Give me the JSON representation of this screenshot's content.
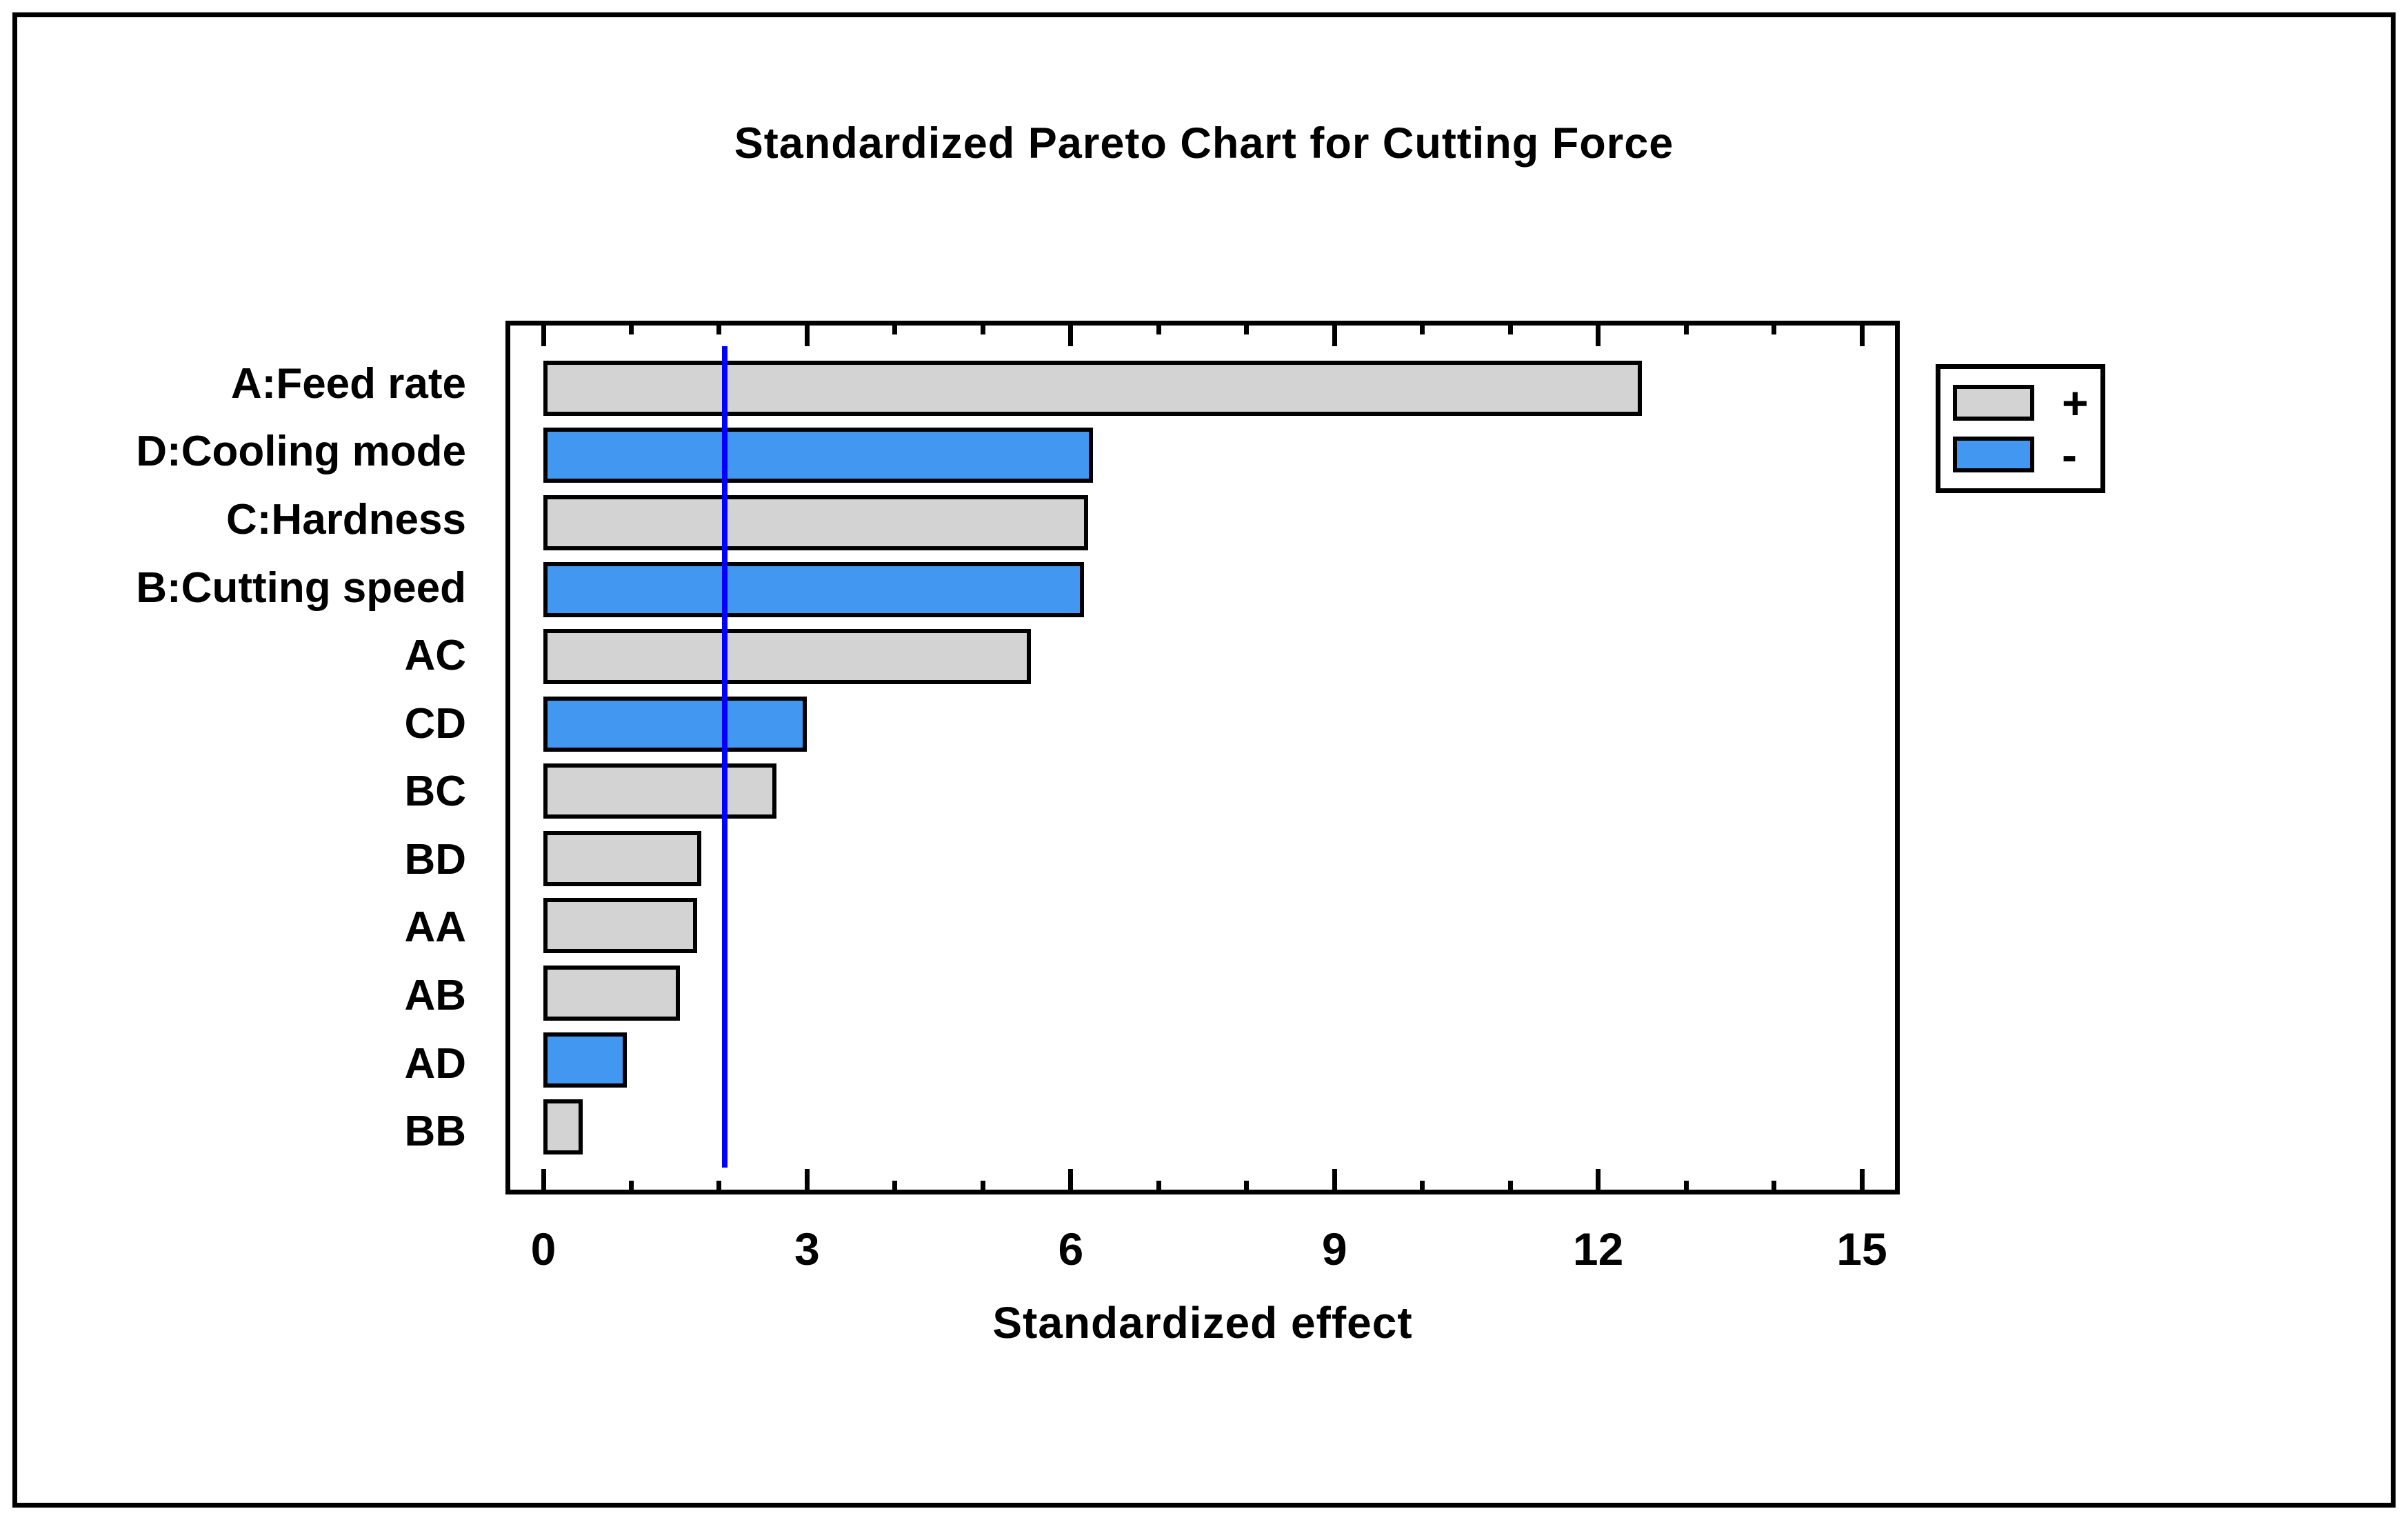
{
  "chart_data": {
    "type": "bar",
    "orientation": "horizontal",
    "title": "Standardized Pareto Chart for Cutting Force",
    "xlabel": "Standardized effect",
    "xlim": [
      0,
      15
    ],
    "x_major_ticks": [
      0,
      3,
      6,
      9,
      12,
      15
    ],
    "x_minor_tick_step": 1,
    "grid": false,
    "legend_position": "outside-upper-right",
    "reference_line_x": 2.06,
    "categories": [
      "A:Feed rate",
      "D:Cooling mode",
      "C:Hardness",
      "B:Cutting speed",
      "AC",
      "CD",
      "BC",
      "BD",
      "AA",
      "AB",
      "AD",
      "BB"
    ],
    "series": [
      {
        "name": "Standardized effect",
        "values": [
          12.5,
          6.25,
          6.2,
          6.15,
          5.55,
          3.0,
          2.65,
          1.8,
          1.75,
          1.55,
          0.95,
          0.45
        ]
      }
    ],
    "signs": [
      "+",
      "-",
      "+",
      "-",
      "+",
      "-",
      "+",
      "+",
      "+",
      "+",
      "-",
      "+"
    ]
  },
  "legend": {
    "items": [
      {
        "label": "+",
        "sign": "+"
      },
      {
        "label": "-",
        "sign": "-"
      }
    ]
  },
  "colors": {
    "positive_bar": "#D3D3D3",
    "negative_bar": "#4297F0",
    "bar_border": "#000000",
    "reference_line": "#0000FF",
    "text": "#000000",
    "background": "#FFFFFF"
  }
}
